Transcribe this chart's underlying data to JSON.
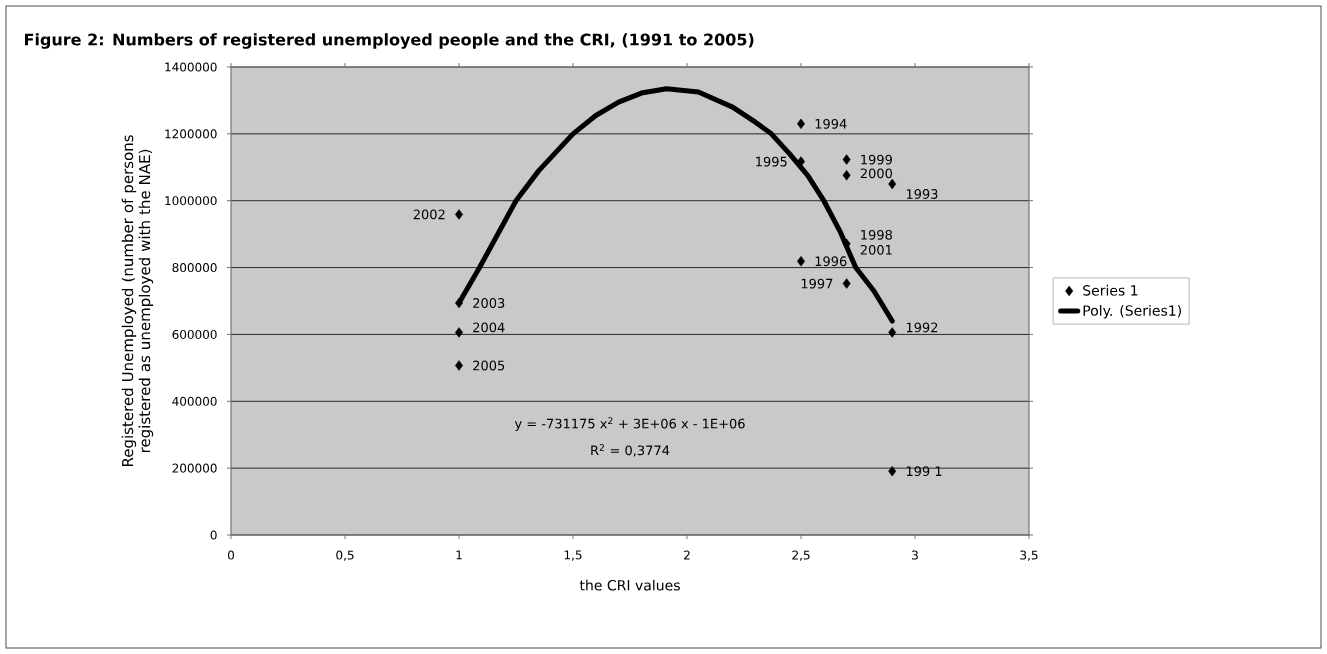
{
  "chart_data": {
    "type": "scatter",
    "title": "Figure 2: Numbers of registered unemployed people and the CRI, (1991 to 2005)",
    "xlabel": "the CRI values",
    "ylabel": "Registered Unemployed (number of persons registered as unemployed with the NAE)",
    "series": [
      {
        "name": "Series 1",
        "color": "#000000",
        "marker": "diamond",
        "x": [
          2.9,
          2.9,
          2.9,
          2.5,
          2.5,
          2.5,
          2.7,
          null,
          2.7,
          2.7,
          2.7,
          1,
          1,
          1,
          1
        ],
        "values": [
          191000,
          606000,
          1050000,
          1230000,
          1117000,
          819000,
          752000,
          null,
          1123000,
          1076000,
          871000,
          959000,
          694000,
          606000,
          507000
        ]
      },
      {
        "name": "Poly. (Series1)",
        "type": "line",
        "color": "#000000",
        "marker": "none",
        "x": [
          1,
          1.09,
          1.17,
          1.25,
          1.35,
          1.5,
          1.6,
          1.7,
          1.8,
          1.91,
          2.05,
          2.2,
          2.3,
          2.37,
          2.45,
          2.53,
          2.6,
          2.67,
          2.74,
          2.82,
          2.9
        ],
        "values": [
          694000,
          800000,
          900000,
          1000000,
          1090000,
          1200000,
          1255000,
          1295000,
          1322000,
          1335000,
          1325000,
          1280000,
          1235000,
          1200000,
          1140000,
          1075000,
          1000000,
          910000,
          800000,
          730000,
          640000
        ]
      }
    ],
    "xlim": [
      0,
      3.5
    ],
    "ylim": [
      0,
      1400000
    ],
    "xticks": [
      0,
      {
        "value": 0.5,
        "label": "0,5"
      },
      1,
      {
        "value": 1.5,
        "label": "1,5"
      },
      2,
      {
        "value": 2.5,
        "label": "2,5"
      },
      3,
      {
        "value": 3.5,
        "label": "3,5"
      }
    ],
    "yticks": [
      0,
      200000,
      400000,
      600000,
      800000,
      1000000,
      1200000,
      1400000
    ],
    "grid": "y",
    "legend": "right",
    "annotations": [
      {
        "text": "199 1",
        "x": 2.9,
        "y": 191000
      },
      {
        "text": "1992",
        "x": 2.9,
        "y": 606000
      },
      {
        "text": "1993",
        "x": 2.9,
        "y": 1050000
      },
      {
        "text": "1994",
        "x": 2.5,
        "y": 1230000
      },
      {
        "text": "1995",
        "x": 2.5,
        "y": 1117000
      },
      {
        "text": "1996",
        "x": 2.5,
        "y": 819000
      },
      {
        "text": "1997",
        "x": 2.7,
        "y": 752000
      },
      {
        "text": "1998",
        "x": 2.7,
        "y": 871000
      },
      {
        "text": "1999",
        "x": 2.7,
        "y": 1123000
      },
      {
        "text": "2000",
        "x": 2.7,
        "y": 1076000
      },
      {
        "text": "2001",
        "x": 2.7,
        "y": 871000
      },
      {
        "text": "2002",
        "x": 1,
        "y": 959000
      },
      {
        "text": "2003",
        "x": 1,
        "y": 694000
      },
      {
        "text": "2004",
        "x": 1,
        "y": 606000
      },
      {
        "text": "2005",
        "x": 1,
        "y": 507000
      },
      "y = -731175 x$^{2}$ + 3E+06 x - 1E+06",
      "R$^{2}$ = 0,3774"
    ]
  }
}
